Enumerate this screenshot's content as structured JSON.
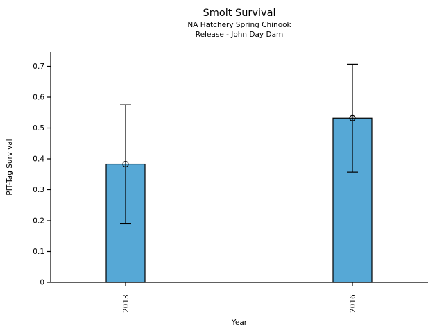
{
  "chart_data": {
    "type": "bar",
    "title": "Smolt Survival",
    "subtitle1": "NA Hatchery Spring Chinook",
    "subtitle2": "Release - John Day Dam",
    "xlabel": "Year",
    "ylabel": "PIT-Tag Survival",
    "categories": [
      "2013",
      "2016"
    ],
    "values": [
      0.383,
      0.532
    ],
    "error_low": [
      0.19,
      0.357
    ],
    "error_high": [
      0.575,
      0.707
    ],
    "yticks": [
      0,
      0.1,
      0.2,
      0.3,
      0.4,
      0.5,
      0.6,
      0.7
    ],
    "ytick_labels": [
      "0",
      "0.1",
      "0.2",
      "0.3",
      "0.4",
      "0.5",
      "0.6",
      "0.7"
    ],
    "ylim": [
      0,
      0.746
    ],
    "grid": "off",
    "legend": "none",
    "marker": "open-circle",
    "bar_color": "#56A8D6",
    "bar_edge_color": "#000000",
    "error_bar_color": "#000000",
    "text_color": "#000000",
    "x_tick_label_rotation": -90
  }
}
